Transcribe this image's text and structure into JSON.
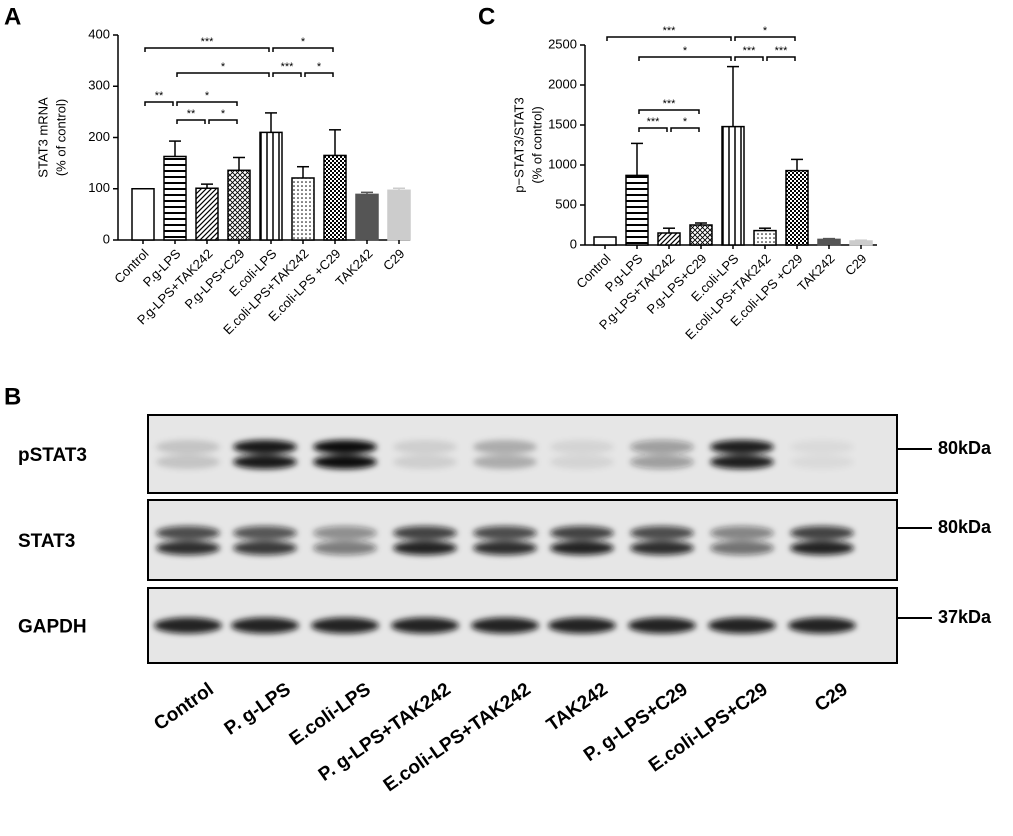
{
  "chart_data": [
    {
      "type": "bar",
      "label": "A",
      "ylabel": [
        "STAT3 mRNA",
        "(% of control)"
      ],
      "categories": [
        "Control",
        "P.g-LPS",
        "P.g-LPS+TAK242",
        "P.g-LPS+C29",
        "E.coli-LPS",
        "E.coli-LPS+TAK242",
        "E.coli-LPS +C29",
        "TAK242",
        "C29"
      ],
      "values": [
        100,
        163,
        101,
        136,
        210,
        121,
        165,
        89,
        97
      ],
      "errors": [
        0,
        30,
        8,
        25,
        38,
        22,
        50,
        4,
        4
      ],
      "colors": [
        "#ffffff",
        "#000000",
        "#000000",
        "#000000",
        "#000000",
        "#000000",
        "#000000",
        "#555555",
        "#cccccc"
      ],
      "patterns": [
        "none",
        "hstripe",
        "dstripe",
        "cross",
        "vstripe",
        "dots",
        "checker",
        "none",
        "none"
      ],
      "ylim": [
        0,
        400
      ],
      "yticks": [
        0,
        100,
        200,
        300,
        400
      ],
      "brackets": [
        {
          "from": 0,
          "to": 4,
          "label": "***"
        },
        {
          "from": 4,
          "to": 6,
          "label": "*"
        },
        {
          "from": 1,
          "to": 4,
          "label": "*"
        },
        {
          "from": 4,
          "to": 5,
          "label": "***"
        },
        {
          "from": 5,
          "to": 6,
          "label": "*"
        },
        {
          "from": 0,
          "to": 1,
          "label": "**"
        },
        {
          "from": 1,
          "to": 3,
          "label": "*"
        },
        {
          "from": 1,
          "to": 2,
          "label": "**"
        },
        {
          "from": 2,
          "to": 3,
          "label": "*"
        }
      ]
    },
    {
      "type": "bar",
      "label": "C",
      "ylabel": [
        "p−STAT3/STAT3",
        "(% of control)"
      ],
      "categories": [
        "Control",
        "P.g-LPS",
        "P.g-LPS+TAK242",
        "P.g-LPS+C29",
        "E.coli-LPS",
        "E.coli-LPS+TAK242",
        "E.coli-LPS +C29",
        "TAK242",
        "C29"
      ],
      "values": [
        100,
        870,
        150,
        250,
        1480,
        180,
        930,
        70,
        50
      ],
      "errors": [
        0,
        400,
        60,
        25,
        750,
        30,
        140,
        10,
        10
      ],
      "colors": [
        "#ffffff",
        "#000000",
        "#000000",
        "#000000",
        "#000000",
        "#000000",
        "#000000",
        "#555555",
        "#cccccc"
      ],
      "patterns": [
        "none",
        "hstripe",
        "dstripe",
        "cross",
        "vstripe",
        "dots",
        "checker",
        "none",
        "none"
      ],
      "ylim": [
        0,
        2500
      ],
      "yticks": [
        0,
        500,
        1000,
        1500,
        2000,
        2500
      ],
      "brackets": [
        {
          "from": 0,
          "to": 4,
          "label": "***"
        },
        {
          "from": 4,
          "to": 6,
          "label": "*"
        },
        {
          "from": 1,
          "to": 4,
          "label": "*"
        },
        {
          "from": 4,
          "to": 5,
          "label": "***"
        },
        {
          "from": 5,
          "to": 6,
          "label": "***"
        },
        {
          "from": 1,
          "to": 3,
          "label": "***"
        },
        {
          "from": 1,
          "to": 2,
          "label": "***"
        },
        {
          "from": 2,
          "to": 3,
          "label": "*"
        }
      ]
    }
  ],
  "blot": {
    "label": "B",
    "rows": [
      {
        "name": "pSTAT3",
        "size": "80kDa"
      },
      {
        "name": "STAT3",
        "size": "80kDa"
      },
      {
        "name": "GAPDH",
        "size": "37kDa"
      }
    ],
    "lanes": [
      "Control",
      "P. g-LPS",
      "E.coli-LPS",
      "P. g-LPS+TAK242",
      "E.coli-LPS+TAK242",
      "TAK242",
      "P. g-LPS+C29",
      "E.coli-LPS+C29",
      "C29"
    ]
  }
}
